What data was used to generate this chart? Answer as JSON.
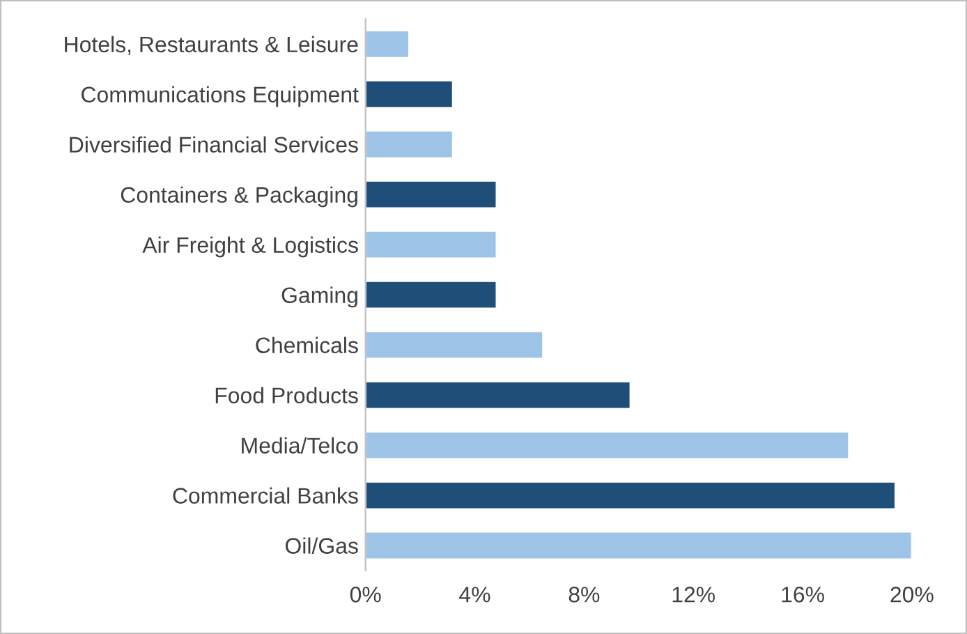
{
  "chart_data": {
    "type": "bar",
    "orientation": "horizontal",
    "categories": [
      "Hotels, Restaurants & Leisure",
      "Communications Equipment",
      "Diversified Financial Services",
      "Containers & Packaging",
      "Air Freight & Logistics",
      "Gaming",
      "Chemicals",
      "Food Products",
      "Media/Telco",
      "Commercial Banks",
      "Oil/Gas"
    ],
    "values": [
      1.6,
      3.2,
      3.2,
      4.8,
      4.8,
      4.8,
      6.5,
      9.7,
      17.7,
      19.4,
      20.0
    ],
    "colors": [
      "#9dc3e6",
      "#1f4e79",
      "#9dc3e6",
      "#1f4e79",
      "#9dc3e6",
      "#1f4e79",
      "#9dc3e6",
      "#1f4e79",
      "#9dc3e6",
      "#1f4e79",
      "#9dc3e6"
    ],
    "xlim": [
      0,
      20
    ],
    "xticks": [
      {
        "value": 0,
        "label": "0%"
      },
      {
        "value": 4,
        "label": "4%"
      },
      {
        "value": 8,
        "label": "8%"
      },
      {
        "value": 12,
        "label": "12%"
      },
      {
        "value": 16,
        "label": "16%"
      },
      {
        "value": 20,
        "label": "20%"
      }
    ],
    "grid": false,
    "legend": false
  }
}
